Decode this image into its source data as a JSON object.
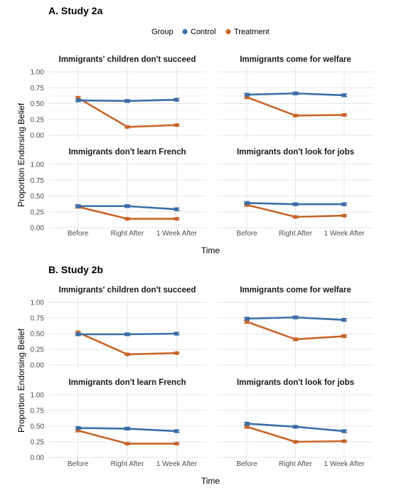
{
  "legend": {
    "title": "Group",
    "items": [
      {
        "name": "Control",
        "color": "#3a6fa7"
      },
      {
        "name": "Treatment",
        "color": "#c8652a"
      }
    ]
  },
  "chart_data": [
    {
      "type": "line",
      "study_label": "A. Study 2a",
      "xlabel": "Time",
      "ylabel": "Proportion Endorsing Belief",
      "categories": [
        "Before",
        "Right After",
        "1 Week After"
      ],
      "ylim": [
        0,
        1
      ],
      "yticks": [
        "0.00",
        "0.25",
        "0.50",
        "0.75",
        "1.00"
      ],
      "panels": [
        {
          "title": "Immigrants' children don't succeed",
          "series": [
            {
              "name": "Control",
              "values": [
                0.55,
                0.54,
                0.56
              ],
              "err": [
                0.02,
                0.02,
                0.02
              ]
            },
            {
              "name": "Treatment",
              "values": [
                0.59,
                0.13,
                0.16
              ],
              "err": [
                0.02,
                0.015,
                0.015
              ]
            }
          ]
        },
        {
          "title": "Immigrants come for welfare",
          "series": [
            {
              "name": "Control",
              "values": [
                0.64,
                0.66,
                0.63
              ],
              "err": [
                0.02,
                0.02,
                0.02
              ]
            },
            {
              "name": "Treatment",
              "values": [
                0.6,
                0.31,
                0.32
              ],
              "err": [
                0.02,
                0.015,
                0.015
              ]
            }
          ]
        },
        {
          "title": "Immigrants don't learn French",
          "series": [
            {
              "name": "Control",
              "values": [
                0.34,
                0.34,
                0.29
              ],
              "err": [
                0.02,
                0.02,
                0.02
              ]
            },
            {
              "name": "Treatment",
              "values": [
                0.33,
                0.14,
                0.14
              ],
              "err": [
                0.02,
                0.015,
                0.015
              ]
            }
          ]
        },
        {
          "title": "Immigrants don't look for jobs",
          "series": [
            {
              "name": "Control",
              "values": [
                0.39,
                0.37,
                0.37
              ],
              "err": [
                0.02,
                0.02,
                0.02
              ]
            },
            {
              "name": "Treatment",
              "values": [
                0.36,
                0.17,
                0.19
              ],
              "err": [
                0.02,
                0.015,
                0.015
              ]
            }
          ]
        }
      ]
    },
    {
      "type": "line",
      "study_label": "B. Study 2b",
      "xlabel": "Time",
      "ylabel": "Proportion Endorsing Belief",
      "categories": [
        "Before",
        "Right After",
        "1 Week After"
      ],
      "ylim": [
        0,
        1
      ],
      "yticks": [
        "0.00",
        "0.25",
        "0.50",
        "0.75",
        "1.00"
      ],
      "panels": [
        {
          "title": "Immigrants' children don't succeed",
          "series": [
            {
              "name": "Control",
              "values": [
                0.49,
                0.49,
                0.5
              ],
              "err": [
                0.02,
                0.02,
                0.02
              ]
            },
            {
              "name": "Treatment",
              "values": [
                0.52,
                0.17,
                0.19
              ],
              "err": [
                0.02,
                0.015,
                0.015
              ]
            }
          ]
        },
        {
          "title": "Immigrants come for welfare",
          "series": [
            {
              "name": "Control",
              "values": [
                0.74,
                0.76,
                0.72
              ],
              "err": [
                0.02,
                0.02,
                0.02
              ]
            },
            {
              "name": "Treatment",
              "values": [
                0.69,
                0.41,
                0.46
              ],
              "err": [
                0.02,
                0.02,
                0.02
              ]
            }
          ]
        },
        {
          "title": "Immigrants don't learn French",
          "series": [
            {
              "name": "Control",
              "values": [
                0.47,
                0.46,
                0.42
              ],
              "err": [
                0.02,
                0.02,
                0.02
              ]
            },
            {
              "name": "Treatment",
              "values": [
                0.43,
                0.22,
                0.22
              ],
              "err": [
                0.02,
                0.015,
                0.015
              ]
            }
          ]
        },
        {
          "title": "Immigrants don't look for jobs",
          "series": [
            {
              "name": "Control",
              "values": [
                0.54,
                0.49,
                0.42
              ],
              "err": [
                0.02,
                0.02,
                0.02
              ]
            },
            {
              "name": "Treatment",
              "values": [
                0.49,
                0.25,
                0.26
              ],
              "err": [
                0.02,
                0.015,
                0.015
              ]
            }
          ]
        }
      ]
    }
  ]
}
